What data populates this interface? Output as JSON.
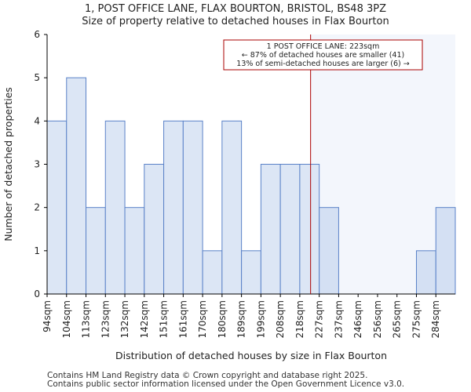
{
  "chart_data": {
    "type": "bar",
    "title": "1, POST OFFICE LANE, FLAX BOURTON, BRISTOL, BS48 3PZ",
    "subtitle": "Size of property relative to detached houses in Flax Bourton",
    "xlabel": "Distribution of detached houses by size in Flax Bourton",
    "ylabel": "Number of detached properties",
    "categories": [
      "94sqm",
      "104sqm",
      "113sqm",
      "123sqm",
      "132sqm",
      "142sqm",
      "151sqm",
      "161sqm",
      "170sqm",
      "180sqm",
      "189sqm",
      "199sqm",
      "208sqm",
      "218sqm",
      "227sqm",
      "237sqm",
      "246sqm",
      "256sqm",
      "265sqm",
      "275sqm",
      "284sqm"
    ],
    "values": [
      4,
      5,
      2,
      4,
      2,
      3,
      4,
      4,
      1,
      4,
      1,
      3,
      3,
      3,
      2,
      0,
      0,
      0,
      0,
      1,
      2
    ],
    "ylim": [
      0,
      6
    ],
    "yticks": [
      0,
      1,
      2,
      3,
      4,
      5,
      6
    ],
    "marker": {
      "value": 223,
      "color": "#aa0000"
    },
    "annotation": {
      "lines": [
        "1 POST OFFICE LANE: 223sqm",
        "← 87% of detached houses are smaller (41)",
        "13% of semi-detached houses are larger (6) →"
      ]
    },
    "colors": {
      "bar_fill": "#dce6f5",
      "bar_stroke": "#5a82c8",
      "highlight_region": "#f3f6fc",
      "axis": "#000000"
    }
  },
  "footer": {
    "line1": "Contains HM Land Registry data © Crown copyright and database right 2025.",
    "line2": "Contains public sector information licensed under the Open Government Licence v3.0."
  }
}
